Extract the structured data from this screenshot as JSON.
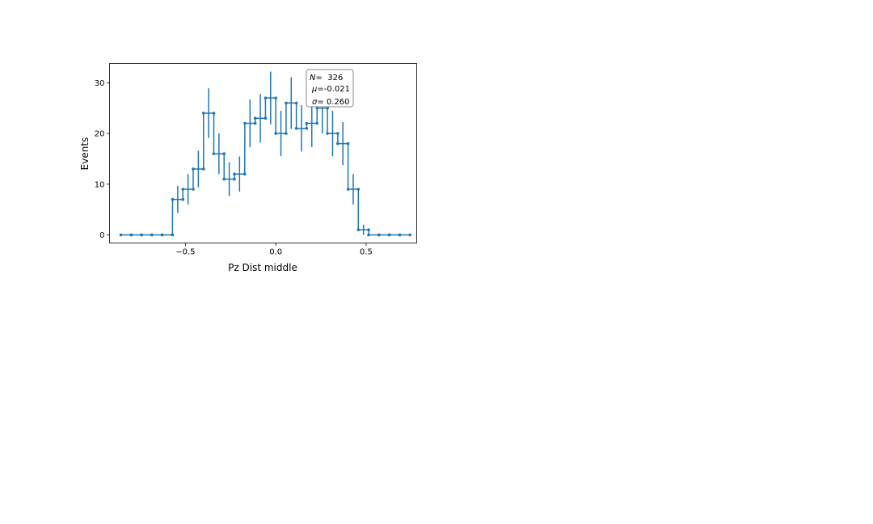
{
  "chart_data": {
    "type": "line",
    "title": "",
    "xlabel": "Pz Dist middle",
    "ylabel": "Events",
    "xlim": [
      -0.92,
      0.78
    ],
    "ylim": [
      -1.6,
      33.8
    ],
    "xticks": [
      -0.5,
      0.0,
      0.5
    ],
    "xtick_labels": [
      "−0.5",
      "0.0",
      "0.5"
    ],
    "yticks": [
      0,
      10,
      20,
      30
    ],
    "ytick_labels": [
      "0",
      "10",
      "20",
      "30"
    ],
    "grid": false,
    "step": "post",
    "bin_width": 0.0571,
    "color": "#1f77b4",
    "x": [
      -0.857,
      -0.8,
      -0.743,
      -0.686,
      -0.629,
      -0.571,
      -0.514,
      -0.457,
      -0.4,
      -0.343,
      -0.286,
      -0.229,
      -0.171,
      -0.114,
      -0.057,
      0.0,
      0.057,
      0.114,
      0.171,
      0.229,
      0.286,
      0.343,
      0.4,
      0.457,
      0.514,
      0.571,
      0.629,
      0.686
    ],
    "values": [
      0,
      0,
      0,
      0,
      0,
      7,
      9,
      13,
      24,
      16,
      11,
      12,
      22,
      23,
      27,
      20,
      26,
      21,
      22,
      25,
      20,
      18,
      9,
      1,
      0,
      0,
      0,
      0
    ],
    "stats_box": {
      "location": "upper-right",
      "lines": [
        {
          "label": "N",
          "value": "=  326"
        },
        {
          "label": "μ",
          "value": "=-0.021"
        },
        {
          "label": "σ",
          "value": "= 0.260"
        }
      ]
    }
  }
}
